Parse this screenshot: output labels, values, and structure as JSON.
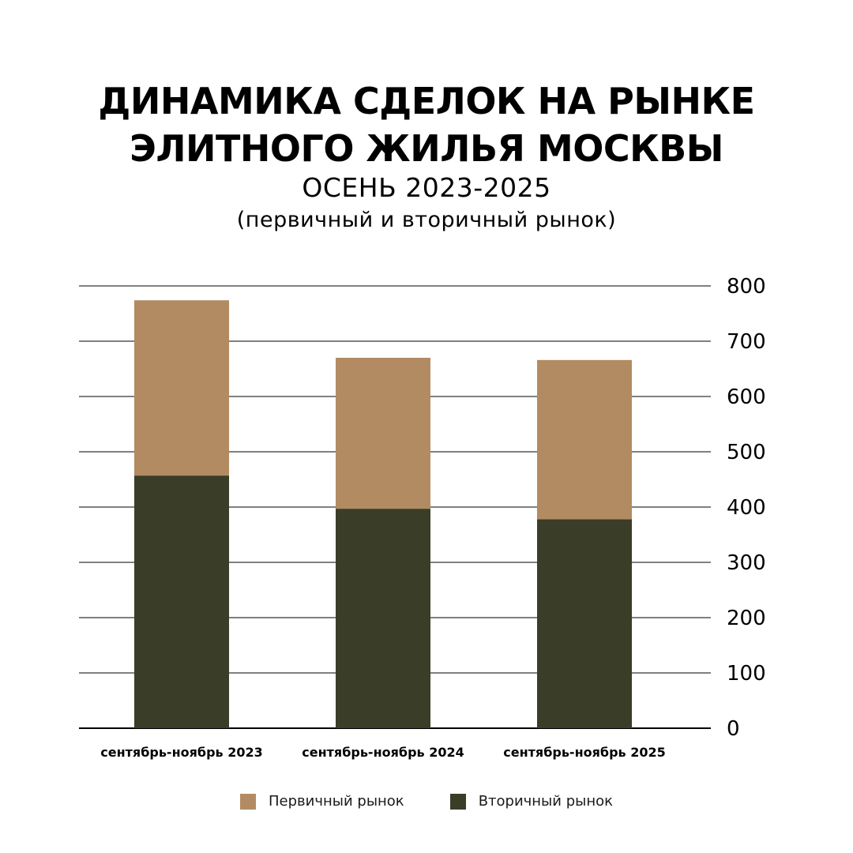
{
  "colors": {
    "primary": "#b38b62",
    "secondary": "#3a3d28",
    "grid": "#000000"
  },
  "chart_data": {
    "type": "bar",
    "stacked": true,
    "title_lines": [
      "ДИНАМИКА СДЕЛОК НА РЫНКЕ",
      "ЭЛИТНОГО ЖИЛЬЯ МОСКВЫ"
    ],
    "subtitle": "ОСЕНЬ 2023-2025",
    "subtitle2": "(первичный и вторичный рынок)",
    "categories": [
      "сентябрь-ноябрь 2023",
      "сентябрь-ноябрь 2024",
      "сентябрь-ноябрь 2025"
    ],
    "series": [
      {
        "name": "Вторичный рынок",
        "values": [
          457,
          397,
          378
        ]
      },
      {
        "name": "Первичный рынок",
        "values": [
          317,
          273,
          288
        ]
      }
    ],
    "ylim": [
      0,
      800
    ],
    "yticks": [
      "0",
      "100",
      "200",
      "300",
      "400",
      "500",
      "600",
      "700",
      "800"
    ],
    "y_axis_side": "right",
    "grid": true,
    "legend_placement": "bottom",
    "legend": [
      "Первичный рынок",
      "Вторичный рынок"
    ]
  }
}
